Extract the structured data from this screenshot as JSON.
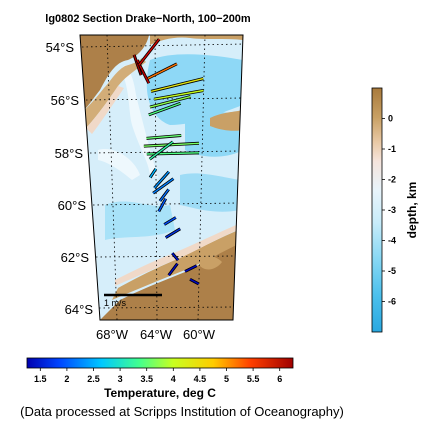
{
  "chart_data": {
    "type": "map",
    "title": "lg0802 Section Drake−North, 100−200m",
    "lat_labels": [
      "54°S",
      "56°S",
      "58°S",
      "60°S",
      "62°S",
      "64°S"
    ],
    "lon_labels": [
      "68°W",
      "64°W",
      "60°W"
    ],
    "vector_scale_label": "1 m/s",
    "temperature_colorbar": {
      "label": "Temperature, deg C",
      "ticks": [
        "1.5",
        "2",
        "2.5",
        "3",
        "3.5",
        "4",
        "4.5",
        "5",
        "5.5",
        "6"
      ],
      "range": [
        1.25,
        6.25
      ],
      "colors": [
        "#0000c0",
        "#0055ff",
        "#00c8ff",
        "#40ff90",
        "#c0ff20",
        "#ffd000",
        "#ff6000",
        "#d00000",
        "#900000"
      ]
    },
    "depth_colorbar": {
      "label": "depth, km",
      "ticks": [
        "0",
        "-1",
        "-2",
        "-3",
        "-4",
        "-5",
        "-6"
      ],
      "range": [
        -7,
        1
      ]
    },
    "vectors": [
      {
        "lat": 54.3,
        "lon": 65.5,
        "u": 0.12,
        "v": -0.35,
        "temp": 6.1
      },
      {
        "lat": 54.5,
        "lon": 65.3,
        "u": 0.2,
        "v": -0.4,
        "temp": 5.8
      },
      {
        "lat": 54.7,
        "lon": 65.2,
        "u": 0.35,
        "v": 0.45,
        "temp": 5.6
      },
      {
        "lat": 55.2,
        "lon": 64.6,
        "u": 0.5,
        "v": 0.25,
        "temp": 4.9
      },
      {
        "lat": 55.7,
        "lon": 64.4,
        "u": 0.9,
        "v": 0.22,
        "temp": 4.1
      },
      {
        "lat": 56.0,
        "lon": 64.2,
        "u": 0.85,
        "v": 0.15,
        "temp": 3.8
      },
      {
        "lat": 56.3,
        "lon": 64.5,
        "u": 0.7,
        "v": 0.18,
        "temp": 3.5
      },
      {
        "lat": 56.6,
        "lon": 64.6,
        "u": 0.55,
        "v": 0.2,
        "temp": 3.2
      },
      {
        "lat": 57.5,
        "lon": 64.8,
        "u": 0.6,
        "v": 0.05,
        "temp": 3.3
      },
      {
        "lat": 57.8,
        "lon": 65.0,
        "u": 0.95,
        "v": 0.05,
        "temp": 3.4
      },
      {
        "lat": 58.1,
        "lon": 64.8,
        "u": 0.9,
        "v": 0.02,
        "temp": 3.2
      },
      {
        "lat": 58.3,
        "lon": 64.6,
        "u": 0.4,
        "v": 0.3,
        "temp": 3.0
      },
      {
        "lat": 59.0,
        "lon": 64.6,
        "u": 0.1,
        "v": 0.15,
        "temp": 2.4
      },
      {
        "lat": 59.4,
        "lon": 64.3,
        "u": 0.25,
        "v": 0.28,
        "temp": 2.2
      },
      {
        "lat": 59.6,
        "lon": 64.4,
        "u": 0.35,
        "v": 0.25,
        "temp": 2.1
      },
      {
        "lat": 59.9,
        "lon": 63.9,
        "u": 0.15,
        "v": 0.2,
        "temp": 2.0
      },
      {
        "lat": 60.3,
        "lon": 64.0,
        "u": 0.12,
        "v": 0.22,
        "temp": 1.9
      },
      {
        "lat": 60.8,
        "lon": 63.6,
        "u": 0.2,
        "v": 0.12,
        "temp": 1.8
      },
      {
        "lat": 61.3,
        "lon": 63.5,
        "u": 0.25,
        "v": 0.15,
        "temp": 1.6
      },
      {
        "lat": 61.9,
        "lon": 63.0,
        "u": 0.1,
        "v": -0.12,
        "temp": 1.4
      },
      {
        "lat": 62.3,
        "lon": 62.6,
        "u": -0.15,
        "v": -0.2,
        "temp": 1.3
      },
      {
        "lat": 62.6,
        "lon": 62.0,
        "u": 0.2,
        "v": 0.1,
        "temp": 1.3
      },
      {
        "lat": 62.9,
        "lon": 61.6,
        "u": 0.15,
        "v": -0.08,
        "temp": 1.3
      }
    ]
  },
  "credit": "(Data processed at Scripps Institution of Oceanography)"
}
